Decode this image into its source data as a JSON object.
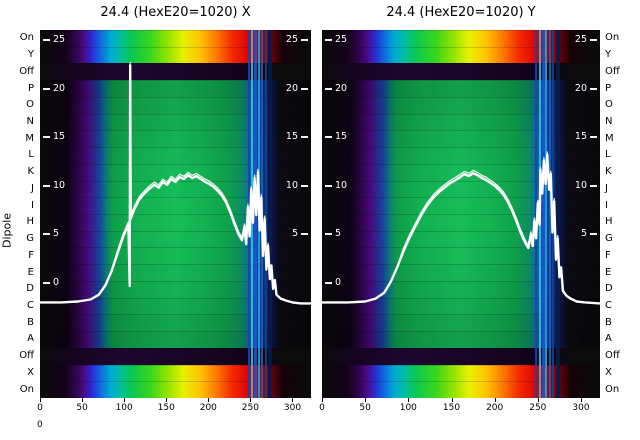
{
  "figure": {
    "ylabel": "Dipole",
    "corner_tick": "0",
    "panels": [
      {
        "title": "24.4 (HexE20=1020) X"
      },
      {
        "title": "24.4 (HexE20=1020) Y"
      }
    ]
  },
  "dipole_labels": [
    "On",
    "Y",
    "Off",
    "P",
    "O",
    "N",
    "M",
    "L",
    "K",
    "J",
    "I",
    "H",
    "G",
    "F",
    "E",
    "D",
    "C",
    "B",
    "A",
    "Off",
    "X",
    "On"
  ],
  "x_ticks": [
    0,
    50,
    100,
    150,
    200,
    250,
    300
  ],
  "chart_data": {
    "type": "heatmap",
    "description": "Two beam-profile heatmap panels (X and Y planes) versus dipole setting rows, spectral colormap, with an overlaid white intensity profile curve and inner white axis tick labels.",
    "x_range": [
      0,
      322
    ],
    "inner_y_ticks_left": [
      25,
      20,
      15,
      10,
      5,
      0
    ],
    "inner_y_ticks_right": [
      25,
      20,
      15,
      10,
      5
    ],
    "colors": {
      "background": "#0a0a0a",
      "profile_line": "#ffffff",
      "green_band": "#16b857",
      "rainbow_peak": "#e8f000"
    },
    "rows": [
      {
        "label": "On",
        "band": "rainbow"
      },
      {
        "label": "Y",
        "band": "rainbow"
      },
      {
        "label": "Off",
        "band": "dark"
      },
      {
        "label": "P",
        "band": "green"
      },
      {
        "label": "O",
        "band": "green"
      },
      {
        "label": "N",
        "band": "green"
      },
      {
        "label": "M",
        "band": "green"
      },
      {
        "label": "L",
        "band": "green"
      },
      {
        "label": "K",
        "band": "green"
      },
      {
        "label": "J",
        "band": "green"
      },
      {
        "label": "I",
        "band": "green"
      },
      {
        "label": "H",
        "band": "green"
      },
      {
        "label": "G",
        "band": "green"
      },
      {
        "label": "F",
        "band": "green"
      },
      {
        "label": "E",
        "band": "green"
      },
      {
        "label": "D",
        "band": "green"
      },
      {
        "label": "C",
        "band": "green"
      },
      {
        "label": "B",
        "band": "green"
      },
      {
        "label": "A",
        "band": "green"
      },
      {
        "label": "Off",
        "band": "dark"
      },
      {
        "label": "X",
        "band": "rainbow"
      },
      {
        "label": "On",
        "band": "rainbow"
      }
    ],
    "streaks": [
      {
        "x": 248,
        "w": 2,
        "color": "#1b40b8"
      },
      {
        "x": 252,
        "w": 2,
        "color": "#29c6e6"
      },
      {
        "x": 256,
        "w": 3,
        "color": "#2152cc"
      },
      {
        "x": 260,
        "w": 2,
        "color": "#19a8dc"
      },
      {
        "x": 264,
        "w": 2,
        "color": "#1565b5"
      },
      {
        "x": 268,
        "w": 2,
        "color": "#0f4494"
      },
      {
        "x": 273,
        "w": 4,
        "color": "#081c4a"
      }
    ],
    "panels": [
      {
        "title": "24.4 (HexE20=1020) X",
        "artifacts": [
          {
            "x": 107,
            "w": 1.5,
            "color": "#bdbd3a",
            "top": 200,
            "height": 56
          }
        ],
        "profile": [
          [
            0,
            -2
          ],
          [
            25,
            -2
          ],
          [
            45,
            -1.9
          ],
          [
            60,
            -1.7
          ],
          [
            70,
            -1.2
          ],
          [
            78,
            -0.2
          ],
          [
            85,
            1.2
          ],
          [
            92,
            3
          ],
          [
            99,
            4.8
          ],
          [
            105,
            6
          ],
          [
            106.6,
            -0.3
          ],
          [
            107.2,
            22.4
          ],
          [
            107.8,
            6.6
          ],
          [
            112,
            7.6
          ],
          [
            118,
            8.6
          ],
          [
            124,
            9.2
          ],
          [
            130,
            9.7
          ],
          [
            136,
            10.1
          ],
          [
            141,
            9.8
          ],
          [
            146,
            10.4
          ],
          [
            151,
            10.1
          ],
          [
            156,
            10.7
          ],
          [
            161,
            10.4
          ],
          [
            166,
            10.9
          ],
          [
            171,
            10.7
          ],
          [
            176,
            11.1
          ],
          [
            181,
            10.8
          ],
          [
            186,
            11
          ],
          [
            191,
            10.7
          ],
          [
            196,
            10.4
          ],
          [
            201,
            10.2
          ],
          [
            206,
            9.9
          ],
          [
            211,
            9.5
          ],
          [
            216,
            9
          ],
          [
            221,
            8.3
          ],
          [
            226,
            7.3
          ],
          [
            231,
            6.1
          ],
          [
            236,
            5
          ],
          [
            240,
            4.4
          ],
          [
            243,
            5.8
          ],
          [
            245,
            4
          ],
          [
            247,
            7.8
          ],
          [
            249,
            4.8
          ],
          [
            251,
            9.6
          ],
          [
            253,
            6.2
          ],
          [
            255,
            10.8
          ],
          [
            257,
            7
          ],
          [
            259,
            11.4
          ],
          [
            261,
            5.4
          ],
          [
            263,
            8.8
          ],
          [
            265,
            2.8
          ],
          [
            267,
            6.6
          ],
          [
            269,
            1.4
          ],
          [
            271,
            3.8
          ],
          [
            273,
            0.4
          ],
          [
            275,
            1.8
          ],
          [
            277,
            -0.6
          ],
          [
            279,
            0.3
          ],
          [
            281,
            -1.2
          ],
          [
            286,
            -1.6
          ],
          [
            292,
            -1.8
          ],
          [
            300,
            -2
          ],
          [
            310,
            -2.1
          ],
          [
            322,
            -2.1
          ]
        ]
      },
      {
        "title": "24.4 (HexE20=1020) Y",
        "artifacts": [],
        "profile": [
          [
            0,
            -2
          ],
          [
            30,
            -2
          ],
          [
            50,
            -1.9
          ],
          [
            62,
            -1.6
          ],
          [
            72,
            -1
          ],
          [
            80,
            0.2
          ],
          [
            87,
            1.6
          ],
          [
            94,
            3.2
          ],
          [
            101,
            4.6
          ],
          [
            108,
            5.8
          ],
          [
            115,
            7
          ],
          [
            122,
            8
          ],
          [
            129,
            8.8
          ],
          [
            136,
            9.4
          ],
          [
            143,
            9.9
          ],
          [
            149,
            10.3
          ],
          [
            155,
            10.6
          ],
          [
            160,
            10.9
          ],
          [
            165,
            11.2
          ],
          [
            170,
            11
          ],
          [
            175,
            11.3
          ],
          [
            180,
            11.1
          ],
          [
            185,
            10.8
          ],
          [
            190,
            10.6
          ],
          [
            195,
            10.3
          ],
          [
            200,
            10
          ],
          [
            205,
            9.6
          ],
          [
            210,
            9.1
          ],
          [
            215,
            8.4
          ],
          [
            220,
            7.5
          ],
          [
            225,
            6.4
          ],
          [
            230,
            5.2
          ],
          [
            235,
            4.2
          ],
          [
            239,
            3.6
          ],
          [
            242,
            5
          ],
          [
            244,
            3.8
          ],
          [
            246,
            6.4
          ],
          [
            248,
            4.6
          ],
          [
            250,
            8.2
          ],
          [
            252,
            6
          ],
          [
            253,
            11.6
          ],
          [
            255,
            9.2
          ],
          [
            257,
            12.6
          ],
          [
            259,
            10.2
          ],
          [
            261,
            13.2
          ],
          [
            263,
            9.6
          ],
          [
            265,
            11.2
          ],
          [
            267,
            5.2
          ],
          [
            269,
            8.4
          ],
          [
            271,
            2.4
          ],
          [
            273,
            4.6
          ],
          [
            275,
            0.6
          ],
          [
            277,
            1.6
          ],
          [
            279,
            -0.8
          ],
          [
            283,
            -1.3
          ],
          [
            288,
            -1.6
          ],
          [
            295,
            -1.9
          ],
          [
            305,
            -2
          ],
          [
            322,
            -2.1
          ]
        ]
      }
    ]
  }
}
